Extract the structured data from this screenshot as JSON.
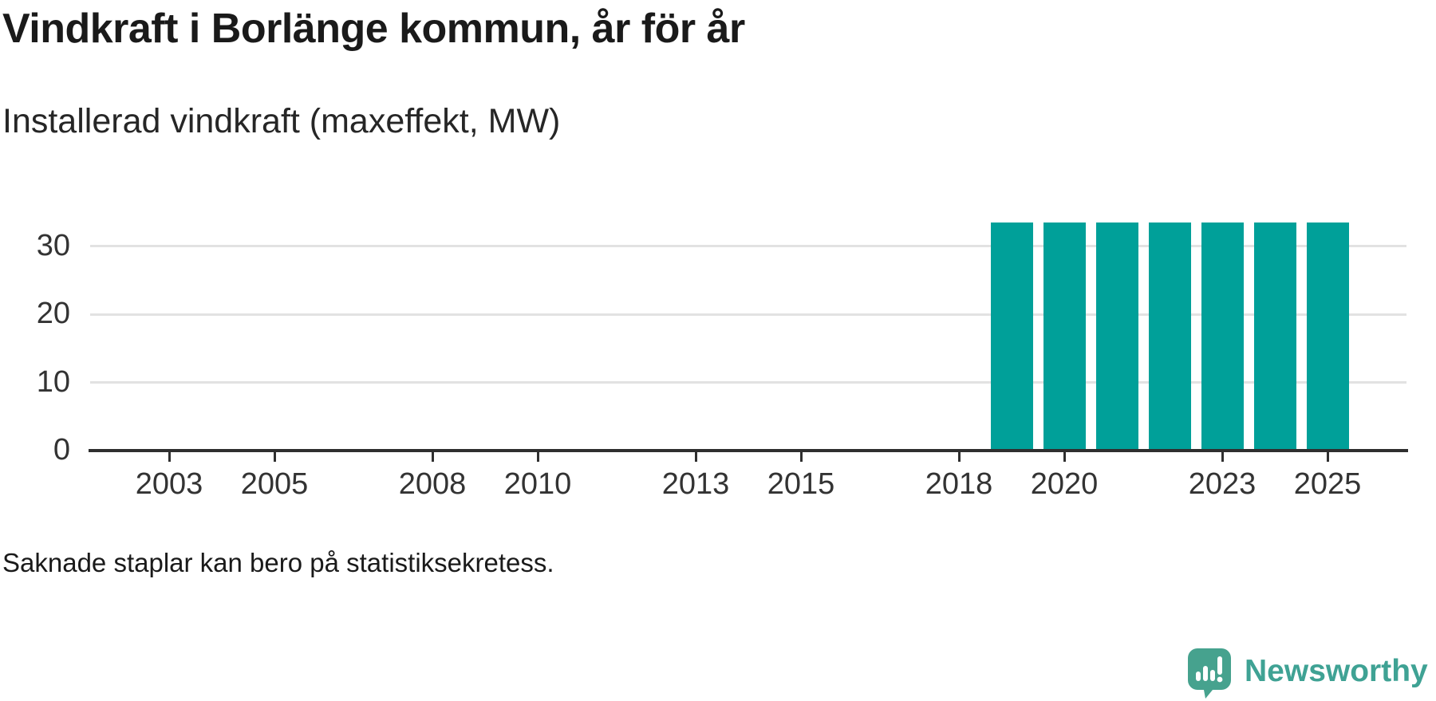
{
  "header": {
    "title": "Vindkraft i Borlänge kommun, år för år",
    "subtitle": "Installerad vindkraft (maxeffekt, MW)"
  },
  "note": "Saknade staplar kan bero på statistiksekretess.",
  "branding": {
    "name": "Newsworthy",
    "logo_icon": "newsworthy-speech-bubble-bar-chart-icon",
    "brand_color": "#3fa294"
  },
  "chart_data": {
    "type": "bar",
    "title": "Vindkraft i Borlänge kommun, år för år",
    "subtitle": "Installerad vindkraft (maxeffekt, MW)",
    "xlabel": "",
    "ylabel": "Installerad vindkraft (maxeffekt, MW)",
    "x_domain": [
      2002,
      2026
    ],
    "x_tick_years": [
      2003,
      2005,
      2008,
      2010,
      2013,
      2015,
      2018,
      2020,
      2023,
      2025
    ],
    "y_ticks": [
      0,
      10,
      20,
      30
    ],
    "ylim": [
      0,
      37.5
    ],
    "grid": "horizontal-only",
    "legend": "none",
    "bars": [
      {
        "year": 2019,
        "value": 33.5
      },
      {
        "year": 2020,
        "value": 33.5
      },
      {
        "year": 2021,
        "value": 33.5
      },
      {
        "year": 2022,
        "value": 33.5
      },
      {
        "year": 2023,
        "value": 33.5
      },
      {
        "year": 2024,
        "value": 33.5
      },
      {
        "year": 2025,
        "value": 33.5
      }
    ],
    "missing_bar_years": [
      2002,
      2003,
      2004,
      2005,
      2006,
      2007,
      2008,
      2009,
      2010,
      2011,
      2012,
      2013,
      2014,
      2015,
      2016,
      2017,
      2018
    ],
    "colors": {
      "bar": "#00a099",
      "gridline": "#e2e2e2",
      "axis": "#2f2f2f",
      "tick_text": "#333333",
      "title_text": "#1a1a1a"
    }
  }
}
